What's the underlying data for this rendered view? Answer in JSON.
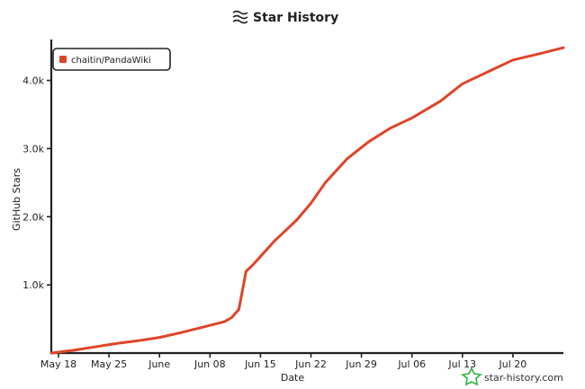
{
  "chart_data": {
    "type": "line",
    "title": "Star History",
    "xlabel": "Date",
    "ylabel": "GitHub Stars",
    "x_ticks": [
      "May 18",
      "May 25",
      "June",
      "Jun 08",
      "Jun 15",
      "Jun 22",
      "Jun 29",
      "Jul 06",
      "Jul 13",
      "Jul 20"
    ],
    "y_ticks": [
      "1.0k",
      "2.0k",
      "3.0k",
      "4.0k"
    ],
    "ylim": [
      0,
      4600
    ],
    "legend_position": "top-left",
    "series": [
      {
        "name": "chaitin/PandaWiki",
        "color": "#dd4528",
        "x": [
          "2025-05-17",
          "2025-05-20",
          "2025-05-23",
          "2025-05-26",
          "2025-05-29",
          "2025-06-01",
          "2025-06-04",
          "2025-06-07",
          "2025-06-10",
          "2025-06-11",
          "2025-06-12",
          "2025-06-13",
          "2025-06-14",
          "2025-06-17",
          "2025-06-20",
          "2025-06-22",
          "2025-06-24",
          "2025-06-27",
          "2025-06-30",
          "2025-07-03",
          "2025-07-06",
          "2025-07-10",
          "2025-07-13",
          "2025-07-17",
          "2025-07-20",
          "2025-07-24",
          "2025-07-27"
        ],
        "y": [
          0,
          40,
          90,
          140,
          180,
          230,
          300,
          380,
          460,
          520,
          640,
          1200,
          1300,
          1650,
          1950,
          2200,
          2500,
          2850,
          3100,
          3300,
          3450,
          3700,
          3950,
          4150,
          4300,
          4400,
          4480
        ]
      }
    ]
  },
  "watermark": "star-history.com"
}
